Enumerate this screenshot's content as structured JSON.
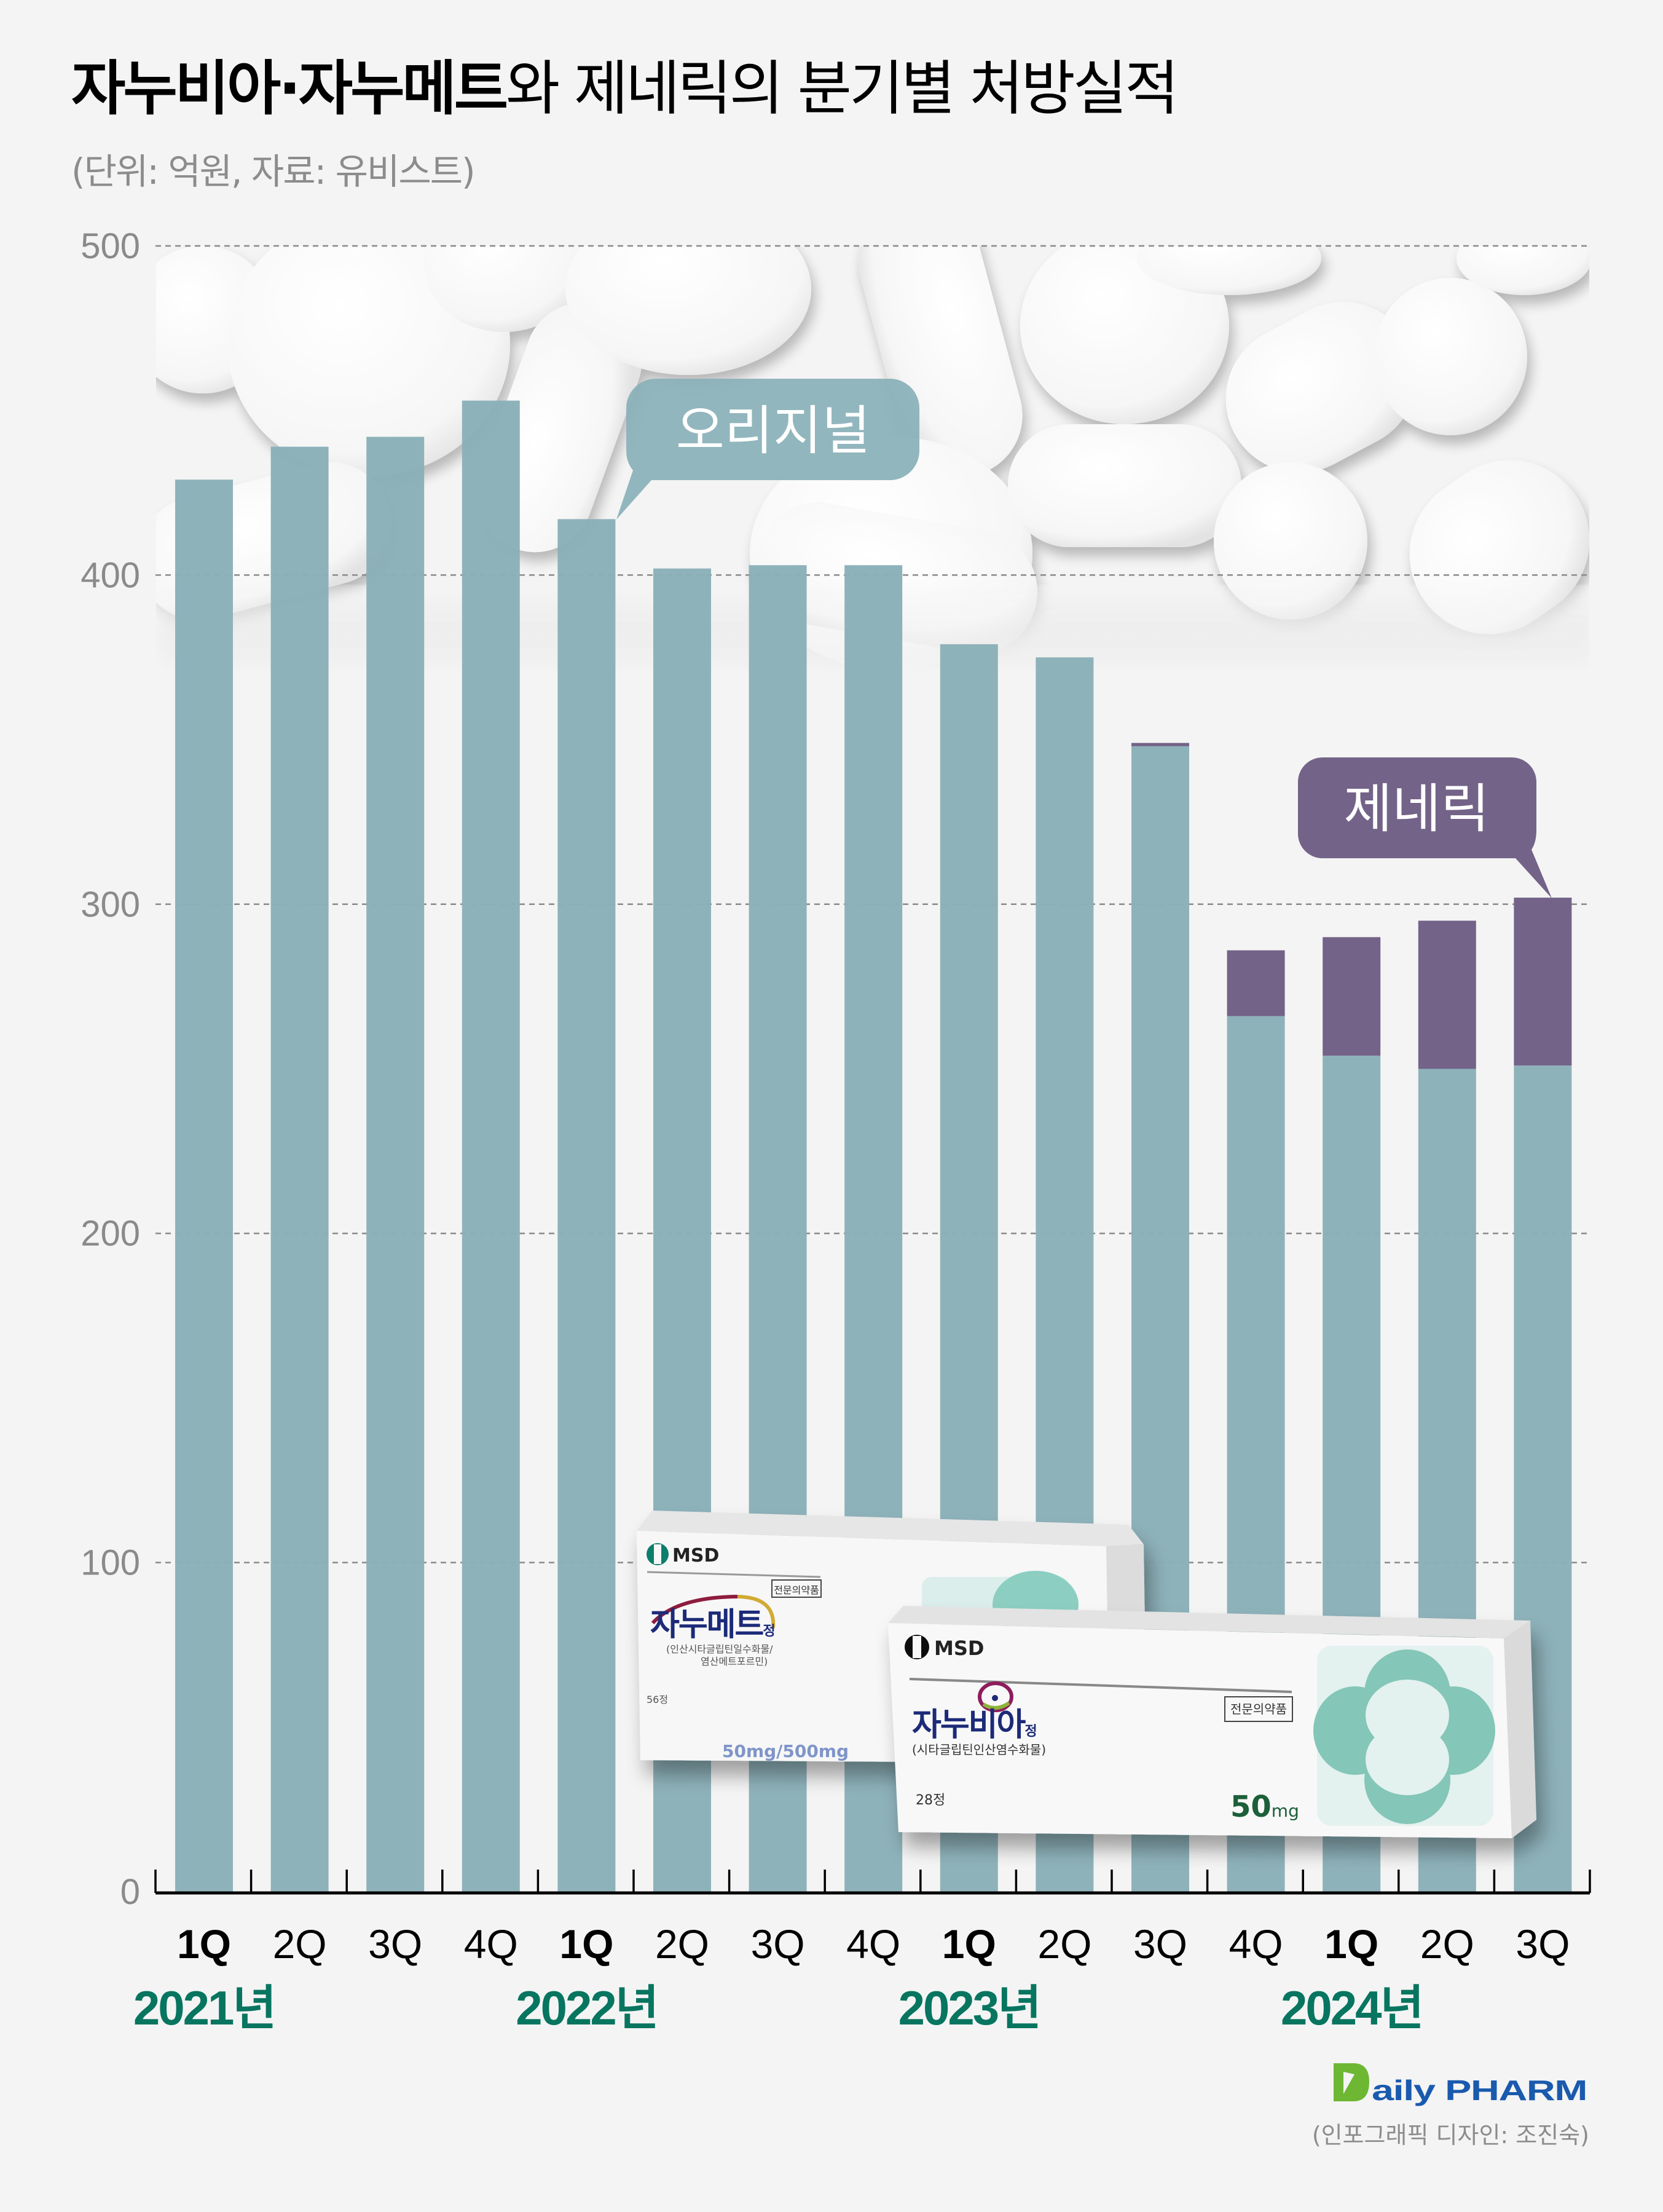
{
  "header": {
    "title_strong": "자누비아·자누메트",
    "title_rest": "와 제네릭의 분기별 처방실적",
    "subtitle": "(단위: 억원, 자료: 유비스트)"
  },
  "colors": {
    "original": "#8ab0b8",
    "generic": "#736388",
    "year_label": "#087560",
    "background": "#f4f4f4",
    "gridline": "#8a8a8a",
    "axis": "#000000"
  },
  "chart_data": {
    "type": "bar",
    "stacked": true,
    "title": "자누비아·자누메트와 제네릭의 분기별 처방실적",
    "unit": "억원",
    "source": "유비스트",
    "xlabel": "",
    "ylabel": "",
    "ylim": [
      0,
      500
    ],
    "yticks": [
      0,
      100,
      200,
      300,
      400,
      500
    ],
    "grid": true,
    "categories": [
      "1Q",
      "2Q",
      "3Q",
      "4Q",
      "1Q",
      "2Q",
      "3Q",
      "4Q",
      "1Q",
      "2Q",
      "3Q",
      "4Q",
      "1Q",
      "2Q",
      "3Q"
    ],
    "bold_categories": [
      0,
      4,
      8,
      12
    ],
    "year_groups": [
      {
        "label": "2021년",
        "start": 0
      },
      {
        "label": "2022년",
        "start": 4
      },
      {
        "label": "2023년",
        "start": 8
      },
      {
        "label": "2024년",
        "start": 12
      }
    ],
    "series": [
      {
        "name": "오리지널",
        "values": [
          429,
          439,
          442,
          453,
          417,
          402,
          403,
          403,
          379,
          375,
          348,
          266,
          254,
          250,
          251
        ]
      },
      {
        "name": "제네릭",
        "values": [
          0,
          0,
          0,
          0,
          0,
          0,
          0,
          0,
          0,
          0,
          1,
          20,
          36,
          45,
          51
        ]
      }
    ],
    "annotations": [
      {
        "text": "오리지널",
        "series": "오리지널",
        "points_to_index": 4
      },
      {
        "text": "제네릭",
        "series": "제네릭",
        "points_to_index": 14
      }
    ]
  },
  "products": {
    "janumet": {
      "maker": "MSD",
      "rx_badge": "전문의약품",
      "name": "자누메트",
      "suffix": "정",
      "ingredient_line1": "(인산시타글립틴일수화물/",
      "ingredient_line2": "염산메트포르민)",
      "count": "56정",
      "dose": "50mg/500mg"
    },
    "januvia": {
      "maker": "MSD",
      "rx_badge": "전문의약품",
      "name": "자누비아",
      "suffix": "정",
      "ingredient": "(시타글립틴인산염수화물)",
      "count": "28정",
      "dose_num": "50",
      "dose_unit": "mg"
    }
  },
  "footer": {
    "logo_initial": "D",
    "logo_text": "aily PHARM",
    "credit": "(인포그래픽 디자인: 조진숙)"
  }
}
